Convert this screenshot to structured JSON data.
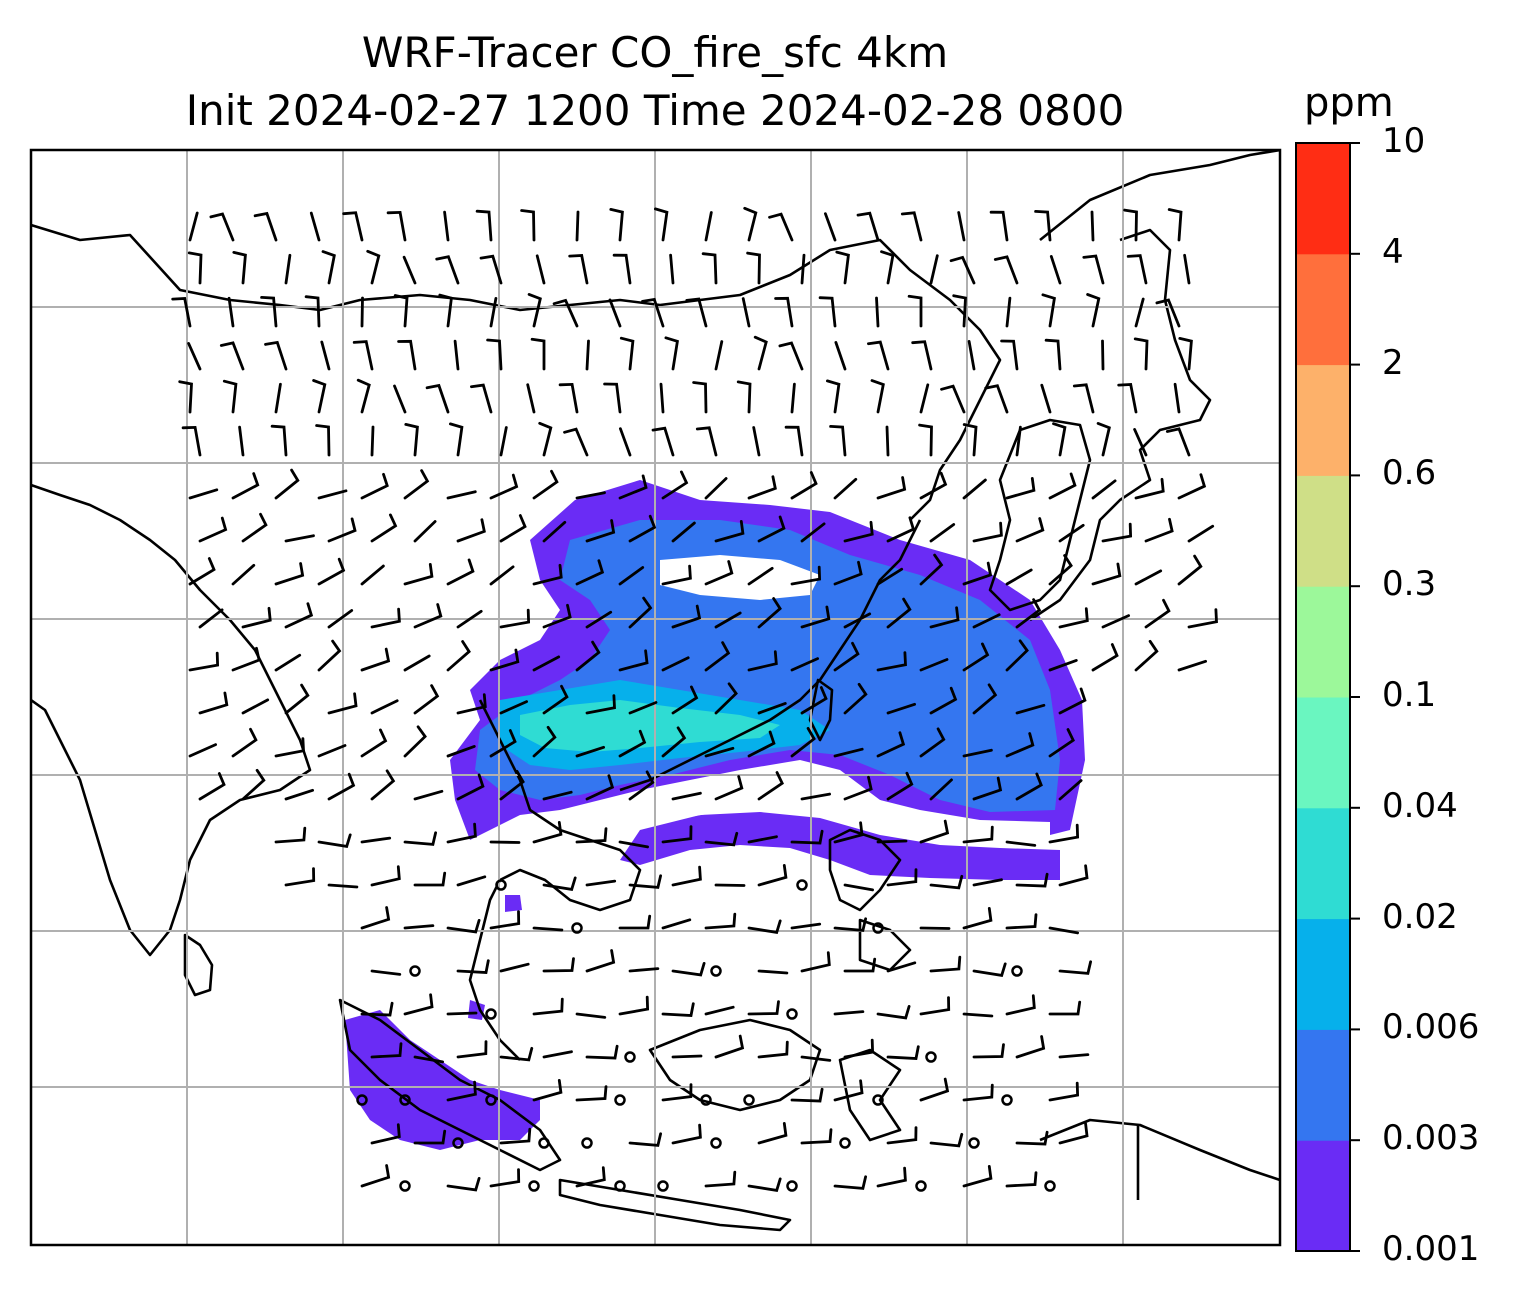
{
  "title_line1": "WRF-Tracer CO_fire_sfc 4km",
  "title_line2": "Init 2024-02-27 1200 Time 2024-02-28 0800",
  "colorbar": {
    "unit": "ppm",
    "levels": [
      "0.001",
      "0.003",
      "0.006",
      "0.02",
      "0.04",
      "0.1",
      "0.3",
      "0.6",
      "2",
      "4",
      "10"
    ],
    "colors": [
      "#6a2cf5",
      "#3476f0",
      "#06b0eb",
      "#2fdcd3",
      "#6af6c0",
      "#9cf89a",
      "#cfdf87",
      "#fdb16a",
      "#ff6f3c",
      "#ff2d14"
    ]
  },
  "map": {
    "gridlines": true,
    "field": "CO_fire_sfc",
    "plume_colors": {
      "low": "#6a2cf5",
      "mid": "#3476f0",
      "high": "#06b0eb",
      "peak": "#2fdcd3"
    },
    "coastline_color": "#000000",
    "grid_color": "#b0b0b0"
  }
}
